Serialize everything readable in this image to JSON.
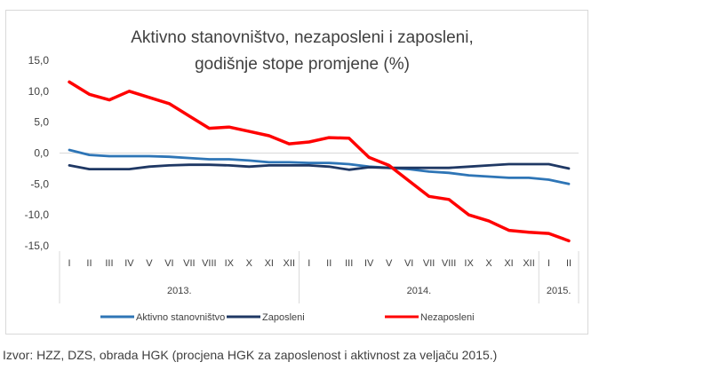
{
  "chart_data": {
    "type": "line",
    "title": [
      "Aktivno stanovništvo, nezaposleni i zaposleni,",
      "godišnje stope promjene (%)"
    ],
    "categories": [
      "I",
      "II",
      "III",
      "IV",
      "V",
      "VI",
      "VII",
      "VIII",
      "IX",
      "X",
      "XI",
      "XII",
      "I",
      "II",
      "III",
      "IV",
      "V",
      "VI",
      "VII",
      "VIII",
      "IX",
      "X",
      "XI",
      "XII",
      "I",
      "II"
    ],
    "groups": [
      {
        "label": "2013.",
        "count": 12
      },
      {
        "label": "2014.",
        "count": 12
      },
      {
        "label": "2015.",
        "count": 2
      }
    ],
    "ylim": [
      -15,
      15
    ],
    "yticks": [
      15,
      10,
      5,
      0,
      -5,
      -10,
      -15
    ],
    "ytick_labels": [
      "15,0",
      "10,0",
      "5,0",
      "0,0",
      "-5,0",
      "-10,0",
      "-15,0"
    ],
    "grid": false,
    "legend_position": "bottom",
    "series": [
      {
        "name": "Aktivno stanovništvo",
        "color": "#2e75b6",
        "values": [
          0.5,
          -0.3,
          -0.5,
          -0.5,
          -0.5,
          -0.6,
          -0.8,
          -1.0,
          -1.0,
          -1.2,
          -1.5,
          -1.5,
          -1.6,
          -1.6,
          -1.8,
          -2.2,
          -2.4,
          -2.6,
          -3.0,
          -3.2,
          -3.6,
          -3.8,
          -4.0,
          -4.0,
          -4.3,
          -5.0
        ]
      },
      {
        "name": "Zaposleni",
        "color": "#1f3864",
        "values": [
          -2.0,
          -2.6,
          -2.6,
          -2.6,
          -2.2,
          -2.0,
          -1.9,
          -1.9,
          -2.0,
          -2.2,
          -2.0,
          -2.0,
          -2.0,
          -2.2,
          -2.7,
          -2.3,
          -2.4,
          -2.4,
          -2.4,
          -2.4,
          -2.2,
          -2.0,
          -1.8,
          -1.8,
          -1.8,
          -2.5
        ]
      },
      {
        "name": "Nezaposleni",
        "color": "#ff0000",
        "values": [
          11.5,
          9.5,
          8.6,
          10.0,
          9.0,
          8.0,
          6.0,
          4.0,
          4.2,
          3.5,
          2.8,
          1.5,
          1.8,
          2.5,
          2.4,
          -0.7,
          -2.0,
          -4.5,
          -7.0,
          -7.5,
          -10.0,
          -11.0,
          -12.5,
          -12.8,
          -13.0,
          -14.2
        ]
      }
    ]
  },
  "source": "Izvor: HZZ, DZS, obrada HGK (procjena HGK za zaposlenost i aktivnost za veljaču 2015.)"
}
